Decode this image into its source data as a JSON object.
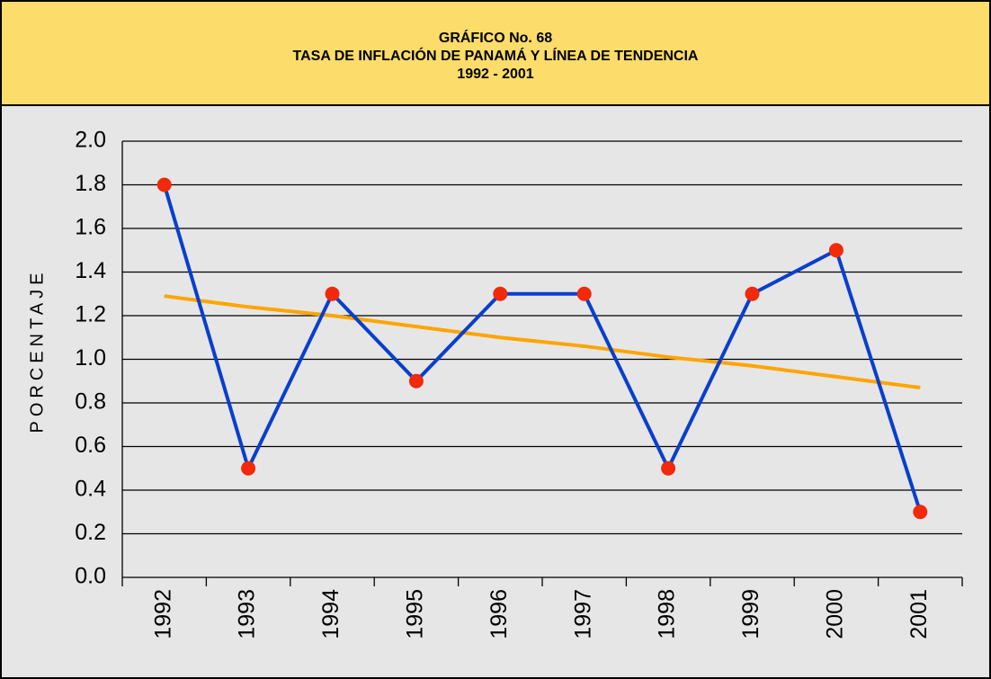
{
  "chart_data": {
    "type": "line",
    "title": [
      "GRÁFICO No. 68",
      "TASA DE INFLACIÓN DE PANAMÁ Y LÍNEA DE TENDENCIA",
      "1992 - 2001"
    ],
    "y_label": "PORCENTAJE",
    "categories": [
      "1992",
      "1993",
      "1994",
      "1995",
      "1996",
      "1997",
      "1998",
      "1999",
      "2000",
      "2001"
    ],
    "series": [
      {
        "color": "#0a3fcc",
        "marker_color": "#f02a0a",
        "values": [
          1.8,
          0.5,
          1.3,
          0.9,
          1.3,
          1.3,
          0.5,
          1.3,
          1.5,
          0.3
        ]
      },
      {
        "color": "#ffa500",
        "values": [
          1.29,
          1.24,
          1.2,
          1.15,
          1.1,
          1.06,
          1.01,
          0.97,
          0.92,
          0.87
        ]
      }
    ],
    "ylim": [
      0,
      2
    ],
    "yticks": [
      {
        "value": 0,
        "label": "0.0"
      },
      0.2,
      0.4,
      0.6,
      0.8,
      {
        "value": 1,
        "label": "1.0"
      },
      1.2,
      1.4,
      1.6,
      1.8,
      {
        "value": 2,
        "label": "2.0"
      }
    ],
    "grid": true
  }
}
